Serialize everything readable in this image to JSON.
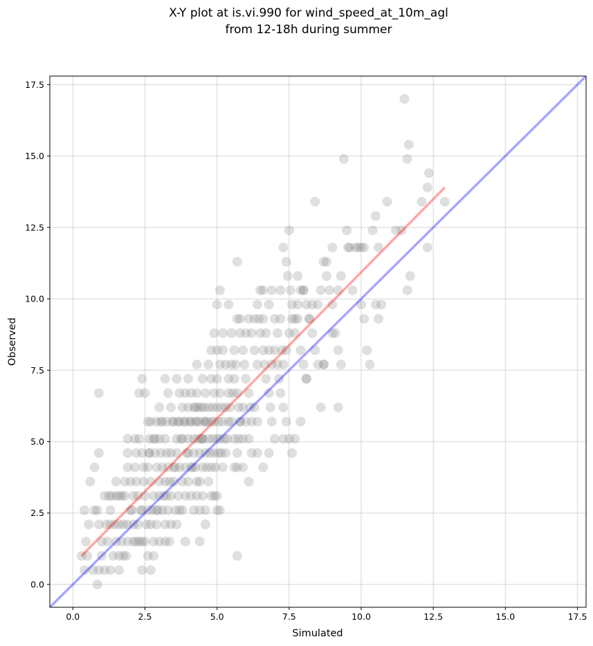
{
  "chart_data": {
    "type": "scatter",
    "title_lines": [
      "X-Y plot at is.vi.990 for wind_speed_at_10m_agl",
      "from 12-18h during summer"
    ],
    "xlabel": "Simulated",
    "ylabel": "Observed",
    "xlim": [
      -0.8,
      17.8
    ],
    "ylim": [
      -0.8,
      17.8
    ],
    "x_ticks": [
      0.0,
      2.5,
      5.0,
      7.5,
      10.0,
      12.5,
      15.0,
      17.5
    ],
    "y_ticks": [
      0.0,
      2.5,
      5.0,
      7.5,
      10.0,
      12.5,
      15.0,
      17.5
    ],
    "x_tick_labels": [
      "0.0",
      "2.5",
      "5.0",
      "7.5",
      "10.0",
      "12.5",
      "15.0",
      "17.5"
    ],
    "y_tick_labels": [
      "0.0",
      "2.5",
      "5.0",
      "7.5",
      "10.0",
      "12.5",
      "15.0",
      "17.5"
    ],
    "grid": true,
    "marker_color": "#808080",
    "marker_opacity": 0.25,
    "reference_line": {
      "name": "1:1 line",
      "color": "#0000ff",
      "opacity": 0.35,
      "x": [
        -0.8,
        17.8
      ],
      "y": [
        -0.8,
        17.8
      ]
    },
    "fit_line": {
      "name": "regression",
      "color": "#ff0000",
      "opacity": 0.35,
      "x": [
        0.3,
        12.9
      ],
      "y": [
        1.0,
        13.9
      ]
    },
    "points": [
      [
        0.3,
        1.0
      ],
      [
        0.4,
        0.5
      ],
      [
        0.5,
        1.0
      ],
      [
        0.45,
        1.5
      ],
      [
        0.7,
        0.5
      ],
      [
        0.85,
        0.0
      ],
      [
        0.9,
        0.5
      ],
      [
        1.0,
        1.0
      ],
      [
        1.1,
        0.5
      ],
      [
        1.3,
        0.5
      ],
      [
        1.6,
        0.5
      ],
      [
        0.4,
        2.6
      ],
      [
        0.55,
        2.1
      ],
      [
        0.75,
        2.6
      ],
      [
        0.85,
        2.6
      ],
      [
        0.9,
        2.1
      ],
      [
        1.0,
        1.5
      ],
      [
        1.15,
        2.1
      ],
      [
        1.3,
        2.6
      ],
      [
        1.2,
        1.5
      ],
      [
        1.4,
        1.0
      ],
      [
        1.5,
        1.5
      ],
      [
        1.6,
        1.0
      ],
      [
        1.7,
        1.5
      ],
      [
        1.75,
        1.0
      ],
      [
        1.85,
        1.0
      ],
      [
        1.9,
        1.5
      ],
      [
        0.6,
        3.6
      ],
      [
        0.75,
        4.1
      ],
      [
        0.9,
        4.6
      ],
      [
        0.9,
        6.7
      ],
      [
        1.1,
        3.1
      ],
      [
        1.25,
        3.1
      ],
      [
        1.35,
        3.1
      ],
      [
        1.5,
        3.1
      ],
      [
        1.6,
        3.1
      ],
      [
        1.7,
        3.1
      ],
      [
        1.8,
        3.1
      ],
      [
        1.5,
        3.6
      ],
      [
        1.8,
        3.6
      ],
      [
        1.9,
        4.1
      ],
      [
        1.9,
        4.6
      ],
      [
        1.9,
        5.1
      ],
      [
        1.3,
        2.1
      ],
      [
        1.45,
        2.1
      ],
      [
        1.6,
        2.1
      ],
      [
        1.75,
        2.1
      ],
      [
        1.9,
        2.1
      ],
      [
        2.0,
        2.6
      ],
      [
        2.1,
        2.1
      ],
      [
        2.1,
        1.5
      ],
      [
        2.2,
        1.5
      ],
      [
        2.3,
        1.5
      ],
      [
        2.4,
        1.5
      ],
      [
        2.5,
        1.5
      ],
      [
        2.4,
        0.5
      ],
      [
        2.7,
        0.5
      ],
      [
        2.6,
        1.0
      ],
      [
        2.8,
        1.0
      ],
      [
        2.0,
        3.6
      ],
      [
        2.1,
        3.1
      ],
      [
        2.2,
        3.6
      ],
      [
        2.15,
        4.1
      ],
      [
        2.2,
        4.6
      ],
      [
        2.15,
        5.1
      ],
      [
        2.3,
        5.1
      ],
      [
        2.4,
        4.6
      ],
      [
        2.45,
        3.6
      ],
      [
        2.5,
        3.1
      ],
      [
        2.4,
        2.6
      ],
      [
        2.6,
        2.6
      ],
      [
        2.7,
        2.1
      ],
      [
        2.8,
        1.5
      ],
      [
        2.9,
        2.1
      ],
      [
        3.0,
        1.5
      ],
      [
        3.2,
        1.5
      ],
      [
        3.35,
        1.5
      ],
      [
        2.3,
        6.7
      ],
      [
        2.4,
        7.2
      ],
      [
        2.5,
        6.7
      ],
      [
        2.6,
        5.7
      ],
      [
        2.65,
        5.1
      ],
      [
        2.65,
        4.6
      ],
      [
        2.6,
        4.1
      ],
      [
        2.7,
        3.6
      ],
      [
        2.8,
        3.1
      ],
      [
        2.9,
        2.6
      ],
      [
        3.0,
        3.1
      ],
      [
        3.1,
        2.6
      ],
      [
        3.2,
        2.1
      ],
      [
        3.4,
        2.1
      ],
      [
        3.6,
        2.1
      ],
      [
        3.8,
        2.6
      ],
      [
        3.9,
        3.1
      ],
      [
        2.7,
        5.7
      ],
      [
        2.8,
        5.1
      ],
      [
        2.85,
        4.6
      ],
      [
        2.9,
        4.1
      ],
      [
        3.0,
        3.6
      ],
      [
        3.0,
        5.1
      ],
      [
        3.05,
        4.6
      ],
      [
        3.1,
        4.1
      ],
      [
        3.2,
        3.6
      ],
      [
        3.25,
        3.1
      ],
      [
        3.3,
        2.6
      ],
      [
        3.4,
        3.1
      ],
      [
        3.5,
        3.6
      ],
      [
        3.55,
        2.6
      ],
      [
        3.65,
        3.1
      ],
      [
        3.7,
        2.6
      ],
      [
        2.9,
        5.7
      ],
      [
        3.0,
        6.2
      ],
      [
        3.1,
        5.7
      ],
      [
        3.2,
        5.1
      ],
      [
        3.25,
        4.6
      ],
      [
        3.3,
        4.1
      ],
      [
        3.4,
        4.6
      ],
      [
        3.5,
        4.1
      ],
      [
        3.6,
        4.6
      ],
      [
        3.7,
        4.1
      ],
      [
        3.8,
        3.6
      ],
      [
        3.9,
        4.1
      ],
      [
        4.0,
        3.6
      ],
      [
        4.1,
        3.1
      ],
      [
        4.2,
        2.6
      ],
      [
        4.3,
        3.1
      ],
      [
        4.4,
        2.6
      ],
      [
        3.3,
        6.7
      ],
      [
        3.2,
        7.2
      ],
      [
        3.4,
        6.2
      ],
      [
        3.5,
        5.7
      ],
      [
        3.6,
        5.1
      ],
      [
        3.7,
        5.7
      ],
      [
        3.8,
        5.1
      ],
      [
        3.9,
        5.7
      ],
      [
        4.0,
        5.1
      ],
      [
        4.0,
        4.6
      ],
      [
        4.1,
        4.1
      ],
      [
        4.2,
        4.6
      ],
      [
        4.25,
        4.1
      ],
      [
        4.3,
        3.6
      ],
      [
        4.4,
        3.6
      ],
      [
        4.5,
        3.1
      ],
      [
        4.6,
        2.6
      ],
      [
        3.6,
        7.2
      ],
      [
        3.7,
        6.7
      ],
      [
        3.8,
        6.2
      ],
      [
        3.9,
        6.7
      ],
      [
        4.0,
        6.2
      ],
      [
        4.1,
        5.7
      ],
      [
        4.2,
        5.1
      ],
      [
        4.3,
        5.7
      ],
      [
        4.35,
        5.1
      ],
      [
        4.4,
        4.6
      ],
      [
        4.5,
        4.1
      ],
      [
        4.6,
        4.6
      ],
      [
        4.65,
        4.1
      ],
      [
        4.7,
        3.6
      ],
      [
        4.8,
        3.1
      ],
      [
        4.9,
        3.1
      ],
      [
        5.0,
        2.6
      ],
      [
        4.0,
        7.2
      ],
      [
        4.1,
        6.7
      ],
      [
        4.2,
        6.2
      ],
      [
        4.3,
        6.7
      ],
      [
        4.35,
        6.2
      ],
      [
        4.4,
        5.7
      ],
      [
        4.5,
        5.1
      ],
      [
        4.55,
        6.2
      ],
      [
        4.6,
        5.7
      ],
      [
        4.7,
        5.1
      ],
      [
        4.75,
        4.6
      ],
      [
        4.8,
        4.1
      ],
      [
        4.9,
        4.6
      ],
      [
        4.95,
        4.1
      ],
      [
        5.0,
        3.1
      ],
      [
        5.1,
        2.6
      ],
      [
        4.3,
        7.7
      ],
      [
        4.5,
        7.2
      ],
      [
        4.6,
        6.7
      ],
      [
        4.7,
        6.2
      ],
      [
        4.8,
        5.7
      ],
      [
        4.85,
        6.2
      ],
      [
        4.9,
        5.7
      ],
      [
        5.0,
        5.1
      ],
      [
        5.0,
        6.2
      ],
      [
        5.05,
        5.7
      ],
      [
        5.1,
        5.1
      ],
      [
        5.15,
        4.6
      ],
      [
        5.2,
        4.1
      ],
      [
        5.3,
        4.6
      ],
      [
        5.35,
        5.1
      ],
      [
        5.4,
        5.7
      ],
      [
        4.7,
        7.7
      ],
      [
        4.8,
        7.2
      ],
      [
        4.9,
        6.7
      ],
      [
        5.0,
        7.2
      ],
      [
        5.1,
        6.7
      ],
      [
        5.15,
        6.2
      ],
      [
        5.2,
        5.7
      ],
      [
        5.3,
        6.2
      ],
      [
        5.4,
        6.7
      ],
      [
        5.45,
        6.2
      ],
      [
        5.5,
        5.7
      ],
      [
        5.6,
        5.1
      ],
      [
        5.7,
        4.6
      ],
      [
        5.75,
        5.1
      ],
      [
        5.8,
        5.7
      ],
      [
        5.9,
        5.1
      ],
      [
        5.9,
        4.1
      ],
      [
        5.7,
        4.1
      ],
      [
        5.6,
        4.1
      ],
      [
        4.8,
        8.2
      ],
      [
        4.9,
        8.8
      ],
      [
        5.0,
        8.2
      ],
      [
        5.1,
        7.7
      ],
      [
        5.2,
        8.2
      ],
      [
        5.3,
        7.7
      ],
      [
        5.4,
        7.2
      ],
      [
        5.5,
        7.7
      ],
      [
        5.55,
        6.7
      ],
      [
        5.6,
        7.2
      ],
      [
        5.7,
        6.7
      ],
      [
        5.75,
        6.2
      ],
      [
        5.8,
        5.7
      ],
      [
        5.9,
        6.2
      ],
      [
        6.0,
        5.7
      ],
      [
        6.1,
        5.1
      ],
      [
        6.2,
        4.6
      ],
      [
        5.0,
        9.8
      ],
      [
        5.1,
        10.3
      ],
      [
        5.2,
        8.8
      ],
      [
        5.4,
        9.8
      ],
      [
        5.5,
        8.8
      ],
      [
        5.6,
        8.2
      ],
      [
        5.65,
        7.7
      ],
      [
        5.7,
        9.3
      ],
      [
        5.8,
        8.8
      ],
      [
        5.9,
        8.2
      ],
      [
        5.95,
        7.7
      ],
      [
        6.0,
        7.2
      ],
      [
        6.1,
        6.7
      ],
      [
        6.15,
        6.2
      ],
      [
        6.2,
        5.7
      ],
      [
        6.3,
        6.2
      ],
      [
        6.4,
        5.7
      ],
      [
        5.7,
        11.3
      ],
      [
        5.8,
        9.3
      ],
      [
        6.0,
        8.8
      ],
      [
        6.1,
        9.3
      ],
      [
        6.2,
        8.8
      ],
      [
        6.3,
        8.2
      ],
      [
        6.4,
        7.7
      ],
      [
        6.45,
        9.3
      ],
      [
        6.5,
        8.8
      ],
      [
        6.6,
        8.2
      ],
      [
        6.65,
        7.7
      ],
      [
        6.7,
        7.2
      ],
      [
        6.8,
        6.7
      ],
      [
        6.85,
        6.2
      ],
      [
        6.9,
        5.7
      ],
      [
        7.0,
        5.1
      ],
      [
        6.3,
        9.3
      ],
      [
        6.4,
        9.8
      ],
      [
        6.5,
        10.3
      ],
      [
        6.6,
        9.3
      ],
      [
        6.7,
        8.8
      ],
      [
        6.8,
        8.2
      ],
      [
        6.9,
        7.7
      ],
      [
        7.0,
        8.2
      ],
      [
        7.1,
        7.7
      ],
      [
        7.15,
        7.2
      ],
      [
        7.2,
        6.7
      ],
      [
        7.3,
        6.2
      ],
      [
        7.4,
        5.7
      ],
      [
        7.5,
        5.1
      ],
      [
        7.6,
        4.6
      ],
      [
        7.7,
        5.1
      ],
      [
        6.6,
        10.3
      ],
      [
        6.8,
        9.8
      ],
      [
        6.9,
        10.3
      ],
      [
        7.0,
        9.3
      ],
      [
        7.1,
        8.8
      ],
      [
        7.2,
        9.3
      ],
      [
        7.25,
        8.2
      ],
      [
        7.3,
        7.7
      ],
      [
        7.4,
        8.2
      ],
      [
        7.5,
        8.8
      ],
      [
        7.6,
        9.3
      ],
      [
        7.7,
        8.8
      ],
      [
        7.8,
        9.3
      ],
      [
        7.9,
        8.2
      ],
      [
        8.0,
        7.7
      ],
      [
        8.1,
        7.2
      ],
      [
        7.2,
        10.3
      ],
      [
        7.3,
        11.8
      ],
      [
        7.4,
        11.3
      ],
      [
        7.45,
        10.8
      ],
      [
        7.5,
        12.4
      ],
      [
        7.55,
        10.3
      ],
      [
        7.6,
        9.8
      ],
      [
        7.7,
        9.3
      ],
      [
        7.8,
        9.8
      ],
      [
        7.9,
        10.3
      ],
      [
        8.0,
        10.3
      ],
      [
        8.1,
        9.8
      ],
      [
        8.2,
        9.3
      ],
      [
        8.3,
        8.8
      ],
      [
        8.4,
        8.2
      ],
      [
        8.5,
        7.7
      ],
      [
        7.8,
        10.8
      ],
      [
        8.0,
        10.3
      ],
      [
        8.2,
        9.3
      ],
      [
        8.3,
        9.8
      ],
      [
        8.4,
        13.4
      ],
      [
        8.5,
        9.8
      ],
      [
        8.6,
        10.3
      ],
      [
        8.7,
        11.3
      ],
      [
        8.8,
        10.8
      ],
      [
        8.9,
        10.3
      ],
      [
        9.0,
        9.8
      ],
      [
        9.1,
        8.8
      ],
      [
        9.2,
        8.2
      ],
      [
        9.3,
        7.7
      ],
      [
        9.2,
        6.2
      ],
      [
        8.7,
        7.7
      ],
      [
        8.8,
        11.3
      ],
      [
        9.0,
        11.8
      ],
      [
        9.2,
        10.3
      ],
      [
        9.3,
        10.8
      ],
      [
        9.4,
        14.9
      ],
      [
        9.5,
        12.4
      ],
      [
        9.55,
        11.8
      ],
      [
        9.6,
        11.8
      ],
      [
        9.7,
        10.3
      ],
      [
        9.8,
        11.8
      ],
      [
        9.9,
        11.8
      ],
      [
        10.0,
        11.8
      ],
      [
        10.1,
        11.8
      ],
      [
        10.0,
        9.8
      ],
      [
        10.1,
        9.3
      ],
      [
        10.2,
        8.2
      ],
      [
        10.3,
        7.7
      ],
      [
        10.4,
        12.4
      ],
      [
        10.5,
        9.8
      ],
      [
        10.6,
        11.8
      ],
      [
        10.7,
        9.8
      ],
      [
        10.6,
        9.3
      ],
      [
        10.9,
        13.4
      ],
      [
        10.5,
        12.9
      ],
      [
        11.2,
        12.4
      ],
      [
        11.4,
        12.4
      ],
      [
        11.5,
        17.0
      ],
      [
        11.6,
        14.9
      ],
      [
        11.6,
        10.3
      ],
      [
        11.65,
        15.4
      ],
      [
        11.7,
        10.8
      ],
      [
        12.1,
        13.4
      ],
      [
        12.3,
        13.9
      ],
      [
        12.35,
        14.4
      ],
      [
        12.3,
        11.8
      ],
      [
        12.9,
        13.4
      ],
      [
        5.7,
        1.0
      ],
      [
        6.1,
        3.6
      ],
      [
        6.6,
        4.1
      ],
      [
        6.4,
        4.6
      ],
      [
        6.8,
        4.6
      ],
      [
        7.3,
        5.1
      ],
      [
        7.9,
        5.7
      ],
      [
        8.1,
        7.2
      ],
      [
        8.6,
        6.2
      ],
      [
        8.7,
        7.7
      ],
      [
        9.0,
        8.8
      ],
      [
        4.6,
        2.1
      ],
      [
        4.4,
        1.5
      ],
      [
        3.9,
        1.5
      ],
      [
        4.5,
        5.1
      ],
      [
        4.55,
        5.7
      ],
      [
        4.45,
        6.2
      ],
      [
        4.25,
        5.7
      ],
      [
        4.15,
        4.1
      ],
      [
        3.95,
        4.6
      ],
      [
        3.75,
        5.1
      ],
      [
        3.55,
        4.1
      ],
      [
        3.35,
        3.6
      ],
      [
        3.15,
        3.1
      ],
      [
        2.95,
        2.6
      ],
      [
        2.75,
        2.6
      ],
      [
        2.55,
        2.1
      ],
      [
        2.35,
        2.6
      ],
      [
        2.25,
        2.1
      ],
      [
        5.25,
        5.1
      ],
      [
        5.05,
        4.6
      ],
      [
        4.85,
        5.1
      ],
      [
        4.65,
        5.7
      ],
      [
        4.45,
        5.1
      ],
      [
        4.25,
        6.2
      ],
      [
        4.05,
        5.7
      ],
      [
        3.85,
        5.7
      ],
      [
        3.65,
        5.7
      ],
      [
        3.45,
        5.7
      ],
      [
        3.25,
        5.7
      ],
      [
        3.05,
        5.7
      ],
      [
        2.85,
        5.1
      ],
      [
        2.65,
        4.6
      ],
      [
        2.45,
        4.1
      ],
      [
        2.25,
        3.1
      ],
      [
        2.05,
        2.6
      ]
    ]
  }
}
